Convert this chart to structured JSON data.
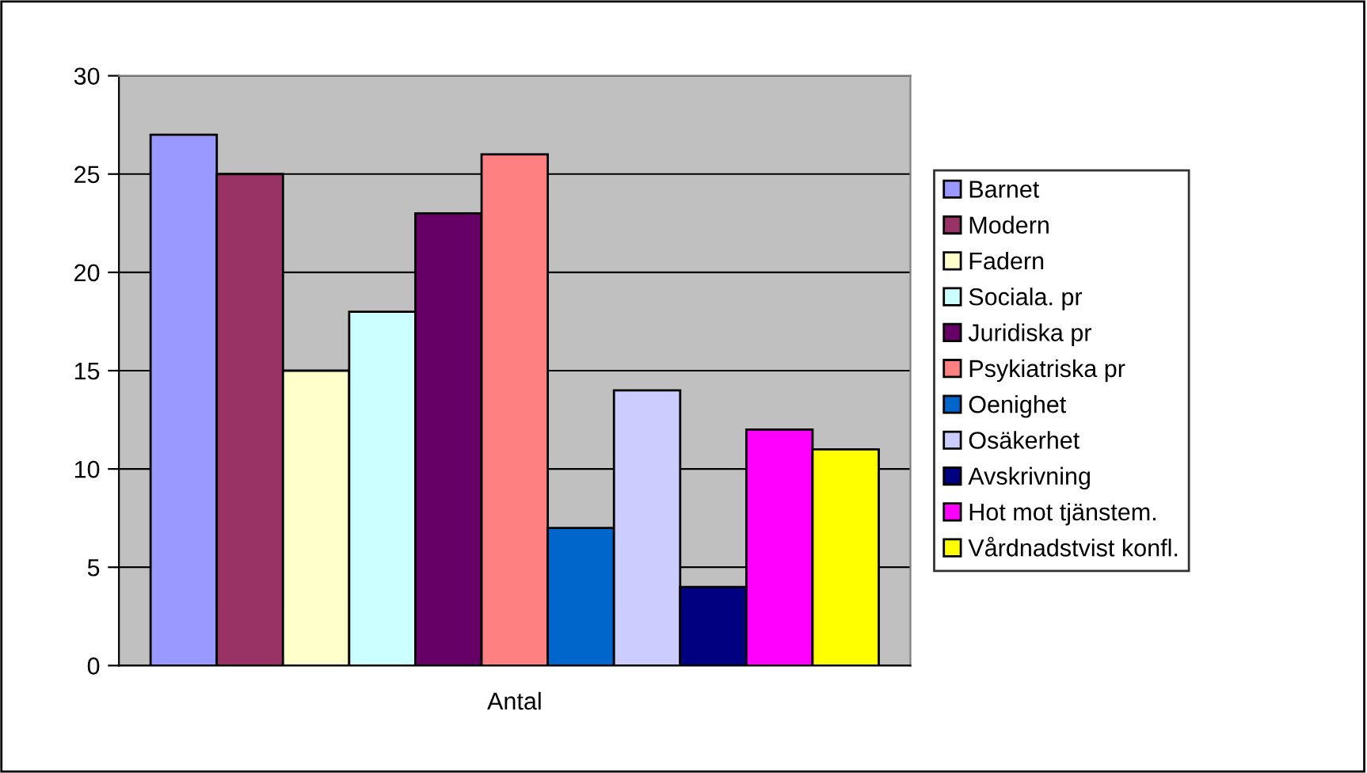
{
  "chart_data": {
    "type": "bar",
    "categories": [
      "Antal"
    ],
    "series": [
      {
        "name": "Barnet",
        "color": "#9999ff",
        "values": [
          27
        ]
      },
      {
        "name": "Modern",
        "color": "#993366",
        "values": [
          25
        ]
      },
      {
        "name": "Fadern",
        "color": "#ffffcc",
        "values": [
          15
        ]
      },
      {
        "name": "Sociala. pr",
        "color": "#ccffff",
        "values": [
          18
        ]
      },
      {
        "name": "Juridiska pr",
        "color": "#660066",
        "values": [
          23
        ]
      },
      {
        "name": "Psykiatriska pr",
        "color": "#ff8080",
        "values": [
          26
        ]
      },
      {
        "name": "Oenighet",
        "color": "#0066cc",
        "values": [
          7
        ]
      },
      {
        "name": "Osäkerhet",
        "color": "#ccccff",
        "values": [
          14
        ]
      },
      {
        "name": "Avskrivning",
        "color": "#000080",
        "values": [
          4
        ]
      },
      {
        "name": "Hot mot tjänstem.",
        "color": "#ff00ff",
        "values": [
          12
        ]
      },
      {
        "name": "Vårdnadstvist konfl.",
        "color": "#ffff00",
        "values": [
          11
        ]
      }
    ],
    "ylim": [
      0,
      30
    ],
    "yticks": [
      0,
      5,
      10,
      15,
      20,
      25,
      30
    ],
    "grid": "y",
    "legend": "right"
  }
}
